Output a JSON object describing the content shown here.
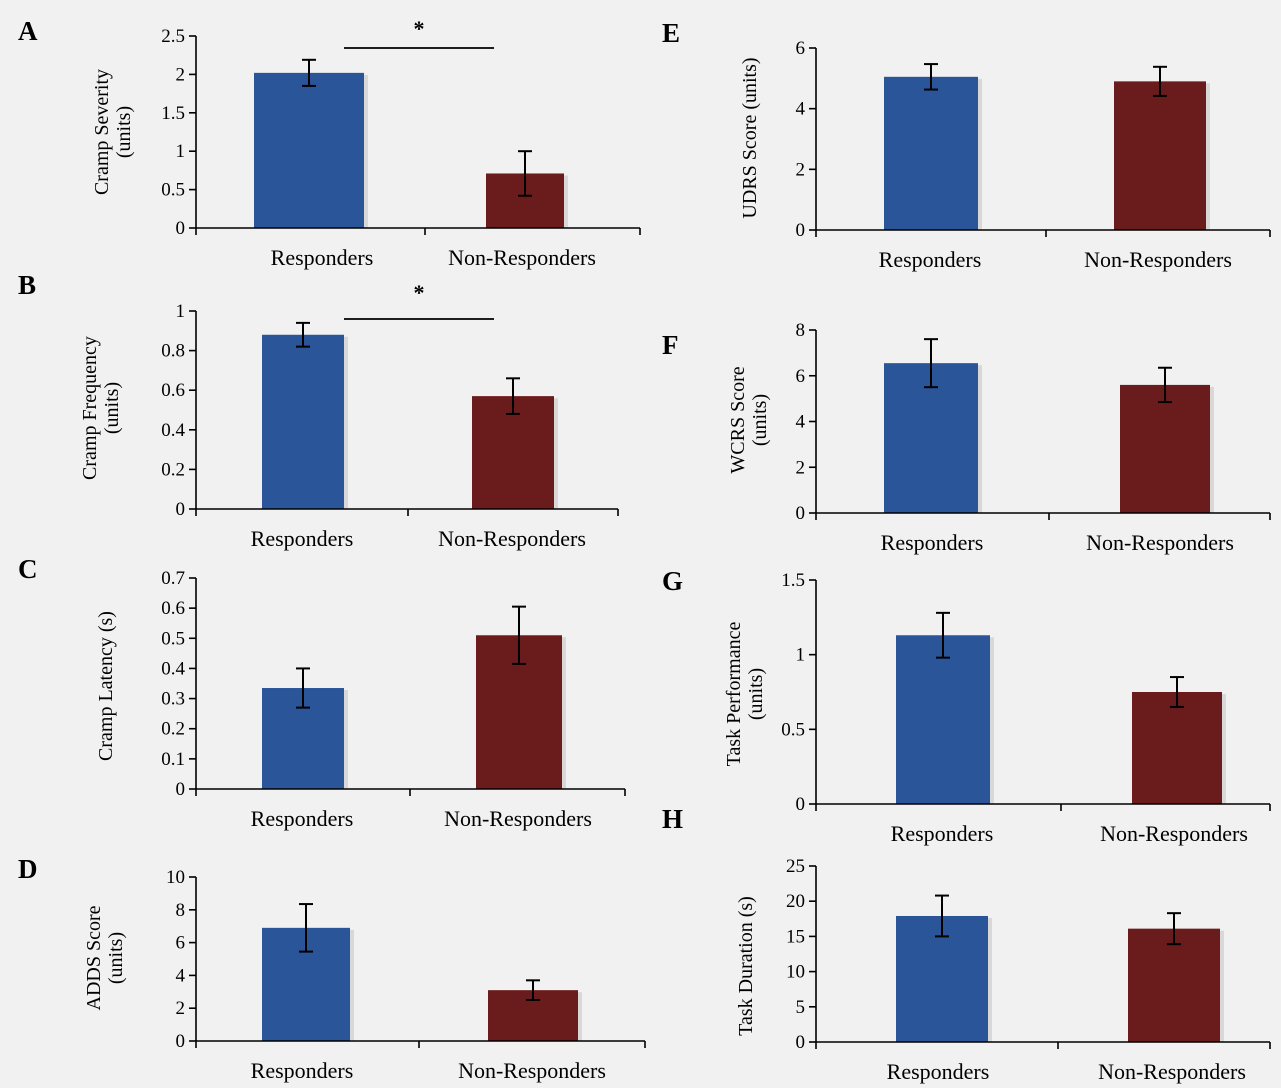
{
  "chart_data": [
    {
      "panel": "A",
      "type": "bar",
      "categories": [
        "Responders",
        "Non-Responders"
      ],
      "values": [
        2.02,
        0.71
      ],
      "errors": [
        0.17,
        0.29
      ],
      "ylabel": [
        "Cramp Severity",
        "(units)"
      ],
      "yticks": [
        "0",
        "0.5",
        "1",
        "1.5",
        "2",
        "2.5"
      ],
      "ylim": [
        0,
        2.5
      ],
      "significance": "*",
      "grid": false,
      "legend": "none"
    },
    {
      "panel": "B",
      "type": "bar",
      "categories": [
        "Responders",
        "Non-Responders"
      ],
      "values": [
        0.88,
        0.57
      ],
      "errors": [
        0.06,
        0.09
      ],
      "ylabel": [
        "Cramp Frequency",
        "(units)"
      ],
      "yticks": [
        "0",
        "0.2",
        "0.4",
        "0.6",
        "0.8",
        "1"
      ],
      "ylim": [
        0,
        1
      ],
      "significance": "*",
      "grid": false,
      "legend": "none"
    },
    {
      "panel": "C",
      "type": "bar",
      "categories": [
        "Responders",
        "Non-Responders"
      ],
      "values": [
        0.335,
        0.51
      ],
      "errors": [
        0.065,
        0.095
      ],
      "ylabel": [
        "Cramp Latency (s)"
      ],
      "yticks": [
        "0",
        "0.1",
        "0.2",
        "0.3",
        "0.4",
        "0.5",
        "0.6",
        "0.7"
      ],
      "ylim": [
        0,
        0.7
      ],
      "significance": "",
      "grid": false,
      "legend": "none"
    },
    {
      "panel": "D",
      "type": "bar",
      "categories": [
        "Responders",
        "Non-Responders"
      ],
      "values": [
        6.9,
        3.1
      ],
      "errors": [
        1.45,
        0.6
      ],
      "ylabel": [
        "ADDS Score",
        "(units)"
      ],
      "yticks": [
        "0",
        "2",
        "4",
        "6",
        "8",
        "10"
      ],
      "ylim": [
        0,
        10
      ],
      "significance": "",
      "grid": false,
      "legend": "none"
    },
    {
      "panel": "E",
      "type": "bar",
      "categories": [
        "Responders",
        "Non-Responders"
      ],
      "values": [
        5.05,
        4.9
      ],
      "errors": [
        0.42,
        0.48
      ],
      "ylabel": [
        "UDRS Score  (units)"
      ],
      "yticks": [
        "0",
        "2",
        "4",
        "6"
      ],
      "ylim": [
        0,
        6
      ],
      "significance": "",
      "grid": false,
      "legend": "none"
    },
    {
      "panel": "F",
      "type": "bar",
      "categories": [
        "Responders",
        "Non-Responders"
      ],
      "values": [
        6.55,
        5.6
      ],
      "errors": [
        1.05,
        0.75
      ],
      "ylabel": [
        "WCRS Score",
        "(units)"
      ],
      "yticks": [
        "0",
        "2",
        "4",
        "6",
        "8"
      ],
      "ylim": [
        0,
        8
      ],
      "significance": "",
      "grid": false,
      "legend": "none"
    },
    {
      "panel": "G",
      "type": "bar",
      "categories": [
        "Responders",
        "Non-Responders"
      ],
      "values": [
        1.13,
        0.75
      ],
      "errors": [
        0.15,
        0.1
      ],
      "ylabel": [
        "Task Performance",
        "(units)"
      ],
      "yticks": [
        "0",
        "0.5",
        "1",
        "1.5"
      ],
      "ylim": [
        0,
        1.5
      ],
      "significance": "",
      "grid": false,
      "legend": "none"
    },
    {
      "panel": "H",
      "type": "bar",
      "categories": [
        "Responders",
        "Non-Responders"
      ],
      "values": [
        17.9,
        16.1
      ],
      "errors": [
        2.9,
        2.2
      ],
      "ylabel": [
        "Task Duration (s)"
      ],
      "yticks": [
        "0",
        "5",
        "10",
        "15",
        "20",
        "25"
      ],
      "ylim": [
        0,
        25
      ],
      "significance": "",
      "grid": false,
      "legend": "none"
    }
  ],
  "colors": {
    "responders": "#2a5599",
    "non_responders": "#6a1b1b",
    "axis": "#000000",
    "background": "#f1f1f1"
  }
}
